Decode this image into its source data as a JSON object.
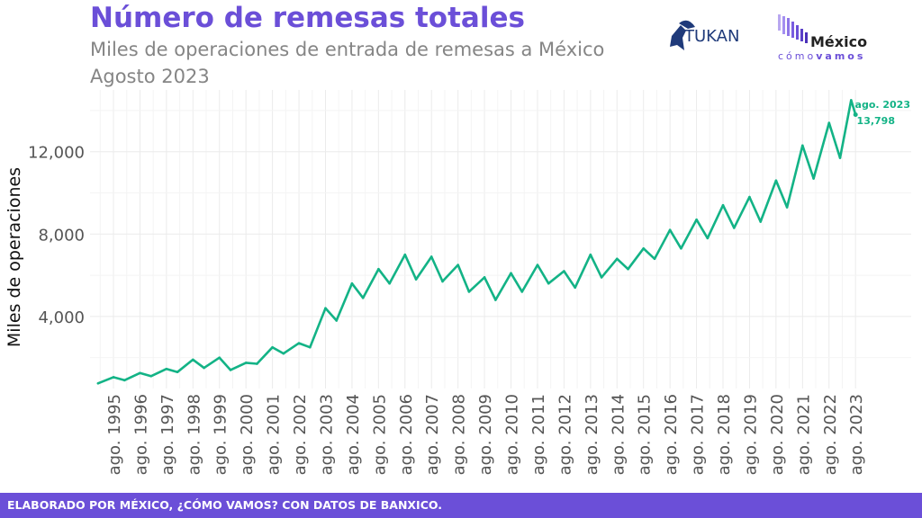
{
  "header": {
    "title": "Número de remesas totales",
    "subtitle_line1": "Miles de operaciones de entrada de remesas a México",
    "subtitle_line2": "Agosto 2023"
  },
  "logos": {
    "tukan": "TUKAN",
    "mcv_main": "México",
    "mcv_prefix": "cómo",
    "mcv_suffix": "vamos"
  },
  "footer": {
    "text": "ELABORADO POR MÉXICO, ¿CÓMO VAMOS? CON DATOS DE BANXICO."
  },
  "colors": {
    "line": "#13b386",
    "title": "#6b4fd8",
    "footer_bg": "#6b4fd8",
    "grid": "#ebebeb"
  },
  "chart_data": {
    "type": "line",
    "title": "Número de remesas totales",
    "ylabel": "Miles de operaciones",
    "xlabel": "",
    "ylim": [
      500,
      15000
    ],
    "x_range": [
      "1995-01",
      "2023-08"
    ],
    "yticks": [
      4000,
      8000,
      12000
    ],
    "ytick_labels": [
      "4,000",
      "8,000",
      "12,000"
    ],
    "xtick_labels": [
      "ago. 1995",
      "ago. 1996",
      "ago. 1997",
      "ago. 1998",
      "ago. 1999",
      "ago. 2000",
      "ago. 2001",
      "ago. 2002",
      "ago. 2003",
      "ago. 2004",
      "ago. 2005",
      "ago. 2006",
      "ago. 2007",
      "ago. 2008",
      "ago. 2009",
      "ago. 2010",
      "ago. 2011",
      "ago. 2012",
      "ago. 2013",
      "ago. 2014",
      "ago. 2015",
      "ago. 2016",
      "ago. 2017",
      "ago. 2018",
      "ago. 2019",
      "ago. 2020",
      "ago. 2021",
      "ago. 2022",
      "ago. 2023"
    ],
    "grid": true,
    "legend": "none",
    "annotation": {
      "label": "ago. 2023",
      "value_label": "13,798",
      "x": "2023-08",
      "y": 13798
    },
    "series": [
      {
        "points": [
          [
            "1995-01",
            750
          ],
          [
            "1995-08",
            1050
          ],
          [
            "1996-01",
            900
          ],
          [
            "1996-08",
            1250
          ],
          [
            "1997-01",
            1100
          ],
          [
            "1997-08",
            1450
          ],
          [
            "1998-01",
            1300
          ],
          [
            "1998-08",
            1900
          ],
          [
            "1999-01",
            1500
          ],
          [
            "1999-08",
            2000
          ],
          [
            "2000-01",
            1400
          ],
          [
            "2000-08",
            1750
          ],
          [
            "2001-01",
            1700
          ],
          [
            "2001-08",
            2500
          ],
          [
            "2002-01",
            2200
          ],
          [
            "2002-08",
            2700
          ],
          [
            "2003-01",
            2500
          ],
          [
            "2003-08",
            4400
          ],
          [
            "2004-01",
            3800
          ],
          [
            "2004-08",
            5600
          ],
          [
            "2005-01",
            4900
          ],
          [
            "2005-08",
            6300
          ],
          [
            "2006-01",
            5600
          ],
          [
            "2006-08",
            7000
          ],
          [
            "2007-01",
            5800
          ],
          [
            "2007-08",
            6900
          ],
          [
            "2008-01",
            5700
          ],
          [
            "2008-08",
            6500
          ],
          [
            "2009-01",
            5200
          ],
          [
            "2009-08",
            5900
          ],
          [
            "2010-01",
            4800
          ],
          [
            "2010-08",
            6100
          ],
          [
            "2011-01",
            5200
          ],
          [
            "2011-08",
            6500
          ],
          [
            "2012-01",
            5600
          ],
          [
            "2012-08",
            6200
          ],
          [
            "2013-01",
            5400
          ],
          [
            "2013-08",
            7000
          ],
          [
            "2014-01",
            5900
          ],
          [
            "2014-08",
            6800
          ],
          [
            "2015-01",
            6300
          ],
          [
            "2015-08",
            7300
          ],
          [
            "2016-01",
            6800
          ],
          [
            "2016-08",
            8200
          ],
          [
            "2017-01",
            7300
          ],
          [
            "2017-08",
            8700
          ],
          [
            "2018-01",
            7800
          ],
          [
            "2018-08",
            9400
          ],
          [
            "2019-01",
            8300
          ],
          [
            "2019-08",
            9800
          ],
          [
            "2020-01",
            8600
          ],
          [
            "2020-08",
            10600
          ],
          [
            "2021-01",
            9300
          ],
          [
            "2021-08",
            12300
          ],
          [
            "2022-01",
            10700
          ],
          [
            "2022-08",
            13400
          ],
          [
            "2023-01",
            11700
          ],
          [
            "2023-06",
            14500
          ],
          [
            "2023-08",
            13798
          ]
        ]
      }
    ]
  }
}
